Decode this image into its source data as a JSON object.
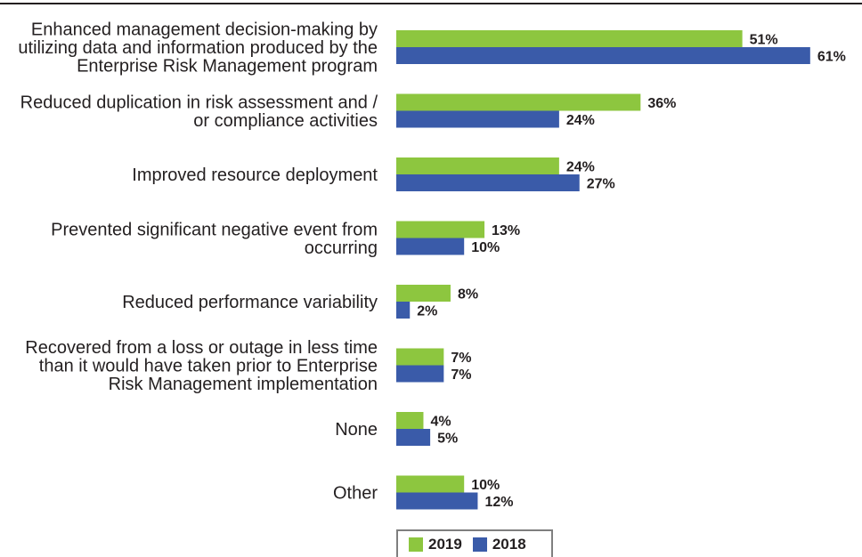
{
  "chart_data": {
    "type": "bar",
    "orientation": "horizontal",
    "categories": [
      [
        "Enhanced management decision-making by",
        "utilizing data and information produced by the",
        "Enterprise Risk Management program"
      ],
      [
        "Reduced duplication in risk assessment and /",
        "or compliance activities"
      ],
      [
        "Improved resource deployment"
      ],
      [
        "Prevented significant negative event from",
        "occurring"
      ],
      [
        "Reduced performance variability"
      ],
      [
        "Recovered from a loss or outage in less time",
        "than it would have taken prior to Enterprise",
        "Risk Management implementation"
      ],
      [
        "None"
      ],
      [
        "Other"
      ]
    ],
    "series": [
      {
        "name": "2019",
        "color": "#8dc63f",
        "values": [
          51,
          36,
          24,
          13,
          8,
          7,
          4,
          10
        ]
      },
      {
        "name": "2018",
        "color": "#3a5ba9",
        "values": [
          61,
          24,
          27,
          10,
          2,
          7,
          5,
          12
        ]
      }
    ],
    "value_suffix": "%",
    "xlim": [
      0,
      100
    ],
    "legend": "bottom"
  }
}
